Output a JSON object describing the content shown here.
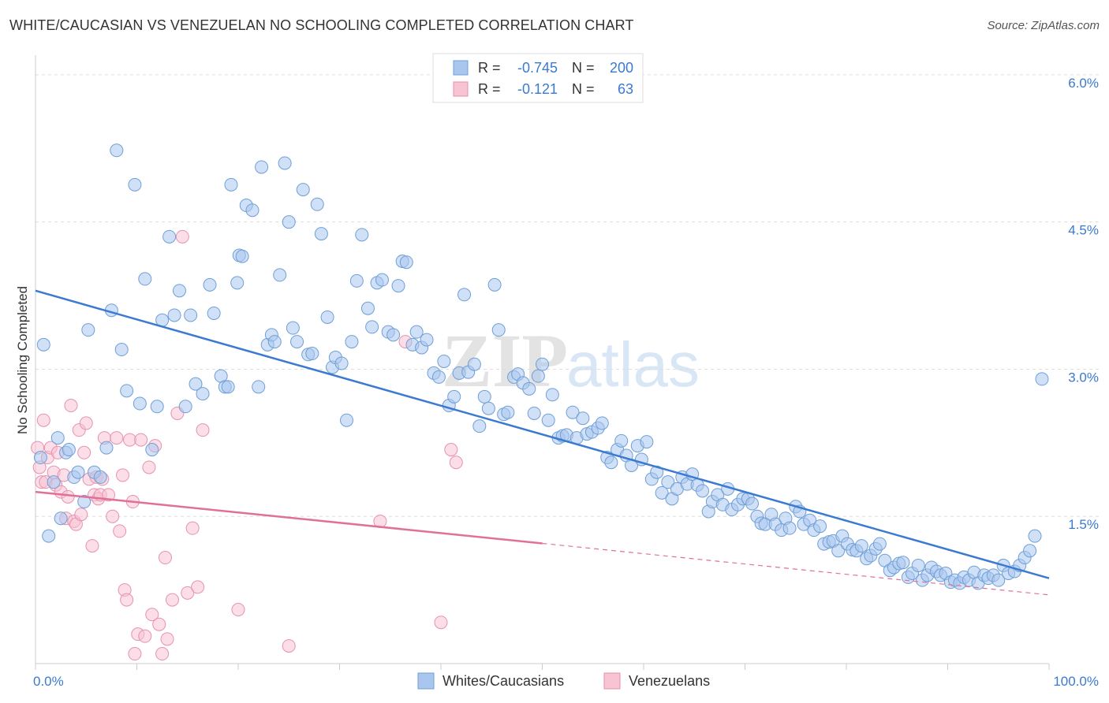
{
  "title": "WHITE/CAUCASIAN VS VENEZUELAN NO SCHOOLING COMPLETED CORRELATION CHART",
  "source": "Source: ZipAtlas.com",
  "watermark": {
    "zip": "ZIP",
    "atlas": "atlas"
  },
  "legend_box": {
    "rows": [
      {
        "r_label": "R =",
        "r_value": "-0.745",
        "n_label": "N =",
        "n_value": "200",
        "color": "#a9c7ee"
      },
      {
        "r_label": "R =",
        "r_value": "-0.121",
        "n_label": "N =",
        "n_value": "63",
        "color": "#f6b8cb"
      }
    ]
  },
  "colors": {
    "blue_fill": "#a9c7ee",
    "blue_stroke": "#6f9fd6",
    "blue_line": "#3a7ad0",
    "pink_fill": "#f8c3d3",
    "pink_stroke": "#e792ae",
    "pink_line": "#e0709a",
    "value_text": "#3a7ad0",
    "grid": "#dddddd"
  },
  "chart_data": {
    "type": "scatter",
    "title": "WHITE/CAUCASIAN VS VENEZUELAN NO SCHOOLING COMPLETED CORRELATION CHART",
    "xlabel": "",
    "ylabel": "No Schooling Completed",
    "xlim": [
      0,
      100
    ],
    "ylim": [
      0,
      6.2
    ],
    "x_tick_labels": [
      "0.0%",
      "100.0%"
    ],
    "y_ticks": [
      1.5,
      3.0,
      4.5,
      6.0
    ],
    "y_tick_labels": [
      "1.5%",
      "3.0%",
      "4.5%",
      "6.0%"
    ],
    "legend": [
      "Whites/Caucasians",
      "Venezuelans"
    ],
    "series": [
      {
        "name": "Whites/Caucasians",
        "R": -0.745,
        "N": 200,
        "trend": {
          "x": [
            0,
            100
          ],
          "y": [
            3.8,
            0.87
          ],
          "dashed_from": null
        },
        "points": [
          [
            0.5,
            2.1
          ],
          [
            0.8,
            3.25
          ],
          [
            1.3,
            1.3
          ],
          [
            1.8,
            1.85
          ],
          [
            2.2,
            2.3
          ],
          [
            2.5,
            1.48
          ],
          [
            3.0,
            2.15
          ],
          [
            3.3,
            2.18
          ],
          [
            3.8,
            1.9
          ],
          [
            4.2,
            1.95
          ],
          [
            4.8,
            1.65
          ],
          [
            5.2,
            3.4
          ],
          [
            5.8,
            1.95
          ],
          [
            6.4,
            1.9
          ],
          [
            7.0,
            2.2
          ],
          [
            7.5,
            3.6
          ],
          [
            8.0,
            5.23
          ],
          [
            8.5,
            3.2
          ],
          [
            9.0,
            2.78
          ],
          [
            9.8,
            4.88
          ],
          [
            10.3,
            2.65
          ],
          [
            10.8,
            3.92
          ],
          [
            11.5,
            2.18
          ],
          [
            12.0,
            2.62
          ],
          [
            12.5,
            3.5
          ],
          [
            13.2,
            4.35
          ],
          [
            13.7,
            3.55
          ],
          [
            14.2,
            3.8
          ],
          [
            14.8,
            2.62
          ],
          [
            15.3,
            3.55
          ],
          [
            15.8,
            2.85
          ],
          [
            16.5,
            2.75
          ],
          [
            17.2,
            3.86
          ],
          [
            17.6,
            3.57
          ],
          [
            18.3,
            2.93
          ],
          [
            18.7,
            2.82
          ],
          [
            19.0,
            2.82
          ],
          [
            19.3,
            4.88
          ],
          [
            19.9,
            3.88
          ],
          [
            20.1,
            4.16
          ],
          [
            20.4,
            4.15
          ],
          [
            20.8,
            4.67
          ],
          [
            21.4,
            4.62
          ],
          [
            22.0,
            2.82
          ],
          [
            22.3,
            5.06
          ],
          [
            22.9,
            3.25
          ],
          [
            23.3,
            3.35
          ],
          [
            23.6,
            3.28
          ],
          [
            24.1,
            3.96
          ],
          [
            24.6,
            5.1
          ],
          [
            25.0,
            4.5
          ],
          [
            25.4,
            3.42
          ],
          [
            25.8,
            3.28
          ],
          [
            26.4,
            4.83
          ],
          [
            26.9,
            3.15
          ],
          [
            27.3,
            3.16
          ],
          [
            27.8,
            4.68
          ],
          [
            28.2,
            4.38
          ],
          [
            28.8,
            3.53
          ],
          [
            29.3,
            3.02
          ],
          [
            29.6,
            3.12
          ],
          [
            30.2,
            3.06
          ],
          [
            30.7,
            2.48
          ],
          [
            31.2,
            3.28
          ],
          [
            31.7,
            3.9
          ],
          [
            32.2,
            4.37
          ],
          [
            32.8,
            3.62
          ],
          [
            33.2,
            3.43
          ],
          [
            33.7,
            3.88
          ],
          [
            34.2,
            3.91
          ],
          [
            34.8,
            3.38
          ],
          [
            35.3,
            3.35
          ],
          [
            35.8,
            3.85
          ],
          [
            36.2,
            4.1
          ],
          [
            36.6,
            4.09
          ],
          [
            37.2,
            3.25
          ],
          [
            37.6,
            3.38
          ],
          [
            38.1,
            3.22
          ],
          [
            38.6,
            3.3
          ],
          [
            39.3,
            2.96
          ],
          [
            39.8,
            2.92
          ],
          [
            40.3,
            3.08
          ],
          [
            40.8,
            2.63
          ],
          [
            41.3,
            2.72
          ],
          [
            41.8,
            2.96
          ],
          [
            42.3,
            3.76
          ],
          [
            42.7,
            2.97
          ],
          [
            43.3,
            3.05
          ],
          [
            43.8,
            2.42
          ],
          [
            44.3,
            2.72
          ],
          [
            44.7,
            2.6
          ],
          [
            45.3,
            3.86
          ],
          [
            45.7,
            3.4
          ],
          [
            46.2,
            2.54
          ],
          [
            46.6,
            2.56
          ],
          [
            47.2,
            2.92
          ],
          [
            47.6,
            2.95
          ],
          [
            48.1,
            2.86
          ],
          [
            48.7,
            2.8
          ],
          [
            49.2,
            2.55
          ],
          [
            49.6,
            2.93
          ],
          [
            50.0,
            3.05
          ],
          [
            50.6,
            2.48
          ],
          [
            51.0,
            2.74
          ],
          [
            51.6,
            2.3
          ],
          [
            52.0,
            2.32
          ],
          [
            52.4,
            2.33
          ],
          [
            53.0,
            2.56
          ],
          [
            53.4,
            2.3
          ],
          [
            54.0,
            2.5
          ],
          [
            54.4,
            2.34
          ],
          [
            54.9,
            2.36
          ],
          [
            55.5,
            2.4
          ],
          [
            55.9,
            2.45
          ],
          [
            56.4,
            2.1
          ],
          [
            56.8,
            2.05
          ],
          [
            57.4,
            2.18
          ],
          [
            57.8,
            2.27
          ],
          [
            58.3,
            2.12
          ],
          [
            58.8,
            2.02
          ],
          [
            59.4,
            2.22
          ],
          [
            59.8,
            2.08
          ],
          [
            60.3,
            2.26
          ],
          [
            60.8,
            1.88
          ],
          [
            61.3,
            1.95
          ],
          [
            61.8,
            1.74
          ],
          [
            62.4,
            1.85
          ],
          [
            62.8,
            1.68
          ],
          [
            63.3,
            1.78
          ],
          [
            63.8,
            1.9
          ],
          [
            64.3,
            1.83
          ],
          [
            64.8,
            1.93
          ],
          [
            65.3,
            1.82
          ],
          [
            65.8,
            1.76
          ],
          [
            66.4,
            1.55
          ],
          [
            66.8,
            1.65
          ],
          [
            67.3,
            1.72
          ],
          [
            67.8,
            1.62
          ],
          [
            68.3,
            1.78
          ],
          [
            68.7,
            1.57
          ],
          [
            69.3,
            1.62
          ],
          [
            69.8,
            1.68
          ],
          [
            70.3,
            1.68
          ],
          [
            70.7,
            1.63
          ],
          [
            71.2,
            1.5
          ],
          [
            71.6,
            1.43
          ],
          [
            72.0,
            1.42
          ],
          [
            72.6,
            1.52
          ],
          [
            73.0,
            1.42
          ],
          [
            73.6,
            1.36
          ],
          [
            74.0,
            1.48
          ],
          [
            74.4,
            1.38
          ],
          [
            75.0,
            1.6
          ],
          [
            75.4,
            1.55
          ],
          [
            75.8,
            1.42
          ],
          [
            76.4,
            1.46
          ],
          [
            76.8,
            1.36
          ],
          [
            77.4,
            1.4
          ],
          [
            77.8,
            1.22
          ],
          [
            78.3,
            1.24
          ],
          [
            78.7,
            1.25
          ],
          [
            79.2,
            1.15
          ],
          [
            79.6,
            1.3
          ],
          [
            80.1,
            1.22
          ],
          [
            80.6,
            1.16
          ],
          [
            81.0,
            1.15
          ],
          [
            81.5,
            1.2
          ],
          [
            82.0,
            1.07
          ],
          [
            82.4,
            1.1
          ],
          [
            82.9,
            1.17
          ],
          [
            83.3,
            1.22
          ],
          [
            83.8,
            1.05
          ],
          [
            84.3,
            0.95
          ],
          [
            84.7,
            0.98
          ],
          [
            85.2,
            1.02
          ],
          [
            85.6,
            1.03
          ],
          [
            86.1,
            0.88
          ],
          [
            86.5,
            0.92
          ],
          [
            87.1,
            1.0
          ],
          [
            87.5,
            0.85
          ],
          [
            88.0,
            0.9
          ],
          [
            88.4,
            0.98
          ],
          [
            88.9,
            0.94
          ],
          [
            89.3,
            0.9
          ],
          [
            89.8,
            0.92
          ],
          [
            90.3,
            0.83
          ],
          [
            90.7,
            0.85
          ],
          [
            91.2,
            0.82
          ],
          [
            91.6,
            0.88
          ],
          [
            92.1,
            0.85
          ],
          [
            92.6,
            0.93
          ],
          [
            93.0,
            0.82
          ],
          [
            93.6,
            0.9
          ],
          [
            94.0,
            0.87
          ],
          [
            94.5,
            0.9
          ],
          [
            95.0,
            0.85
          ],
          [
            95.5,
            1.0
          ],
          [
            96.0,
            0.92
          ],
          [
            96.6,
            0.94
          ],
          [
            97.1,
            1.0
          ],
          [
            97.6,
            1.08
          ],
          [
            98.1,
            1.15
          ],
          [
            98.6,
            1.3
          ],
          [
            99.3,
            2.9
          ]
        ]
      },
      {
        "name": "Venezuelans",
        "R": -0.121,
        "N": 63,
        "trend": {
          "x": [
            0,
            100
          ],
          "y": [
            1.75,
            0.7
          ],
          "solid_until": 50
        },
        "points": [
          [
            0.2,
            2.2
          ],
          [
            0.4,
            2.0
          ],
          [
            0.6,
            1.85
          ],
          [
            0.8,
            2.48
          ],
          [
            1.0,
            1.85
          ],
          [
            1.2,
            2.1
          ],
          [
            1.5,
            2.2
          ],
          [
            1.8,
            1.95
          ],
          [
            2.0,
            1.82
          ],
          [
            2.2,
            2.15
          ],
          [
            2.5,
            1.75
          ],
          [
            2.8,
            1.92
          ],
          [
            3.0,
            1.48
          ],
          [
            3.2,
            1.7
          ],
          [
            3.5,
            2.63
          ],
          [
            3.8,
            1.45
          ],
          [
            4.0,
            1.42
          ],
          [
            4.3,
            2.38
          ],
          [
            4.5,
            1.52
          ],
          [
            4.8,
            2.15
          ],
          [
            5.0,
            2.45
          ],
          [
            5.3,
            1.88
          ],
          [
            5.6,
            1.2
          ],
          [
            5.8,
            1.72
          ],
          [
            6.0,
            1.9
          ],
          [
            6.2,
            1.68
          ],
          [
            6.4,
            1.72
          ],
          [
            6.6,
            1.88
          ],
          [
            6.8,
            2.3
          ],
          [
            7.2,
            1.72
          ],
          [
            7.6,
            1.5
          ],
          [
            8.0,
            2.3
          ],
          [
            8.3,
            1.35
          ],
          [
            8.6,
            1.92
          ],
          [
            8.8,
            0.75
          ],
          [
            9.0,
            0.65
          ],
          [
            9.3,
            2.28
          ],
          [
            9.6,
            1.65
          ],
          [
            9.8,
            0.1
          ],
          [
            10.1,
            0.3
          ],
          [
            10.4,
            2.28
          ],
          [
            10.8,
            0.28
          ],
          [
            11.2,
            2.0
          ],
          [
            11.5,
            0.5
          ],
          [
            11.8,
            2.22
          ],
          [
            12.2,
            0.4
          ],
          [
            12.5,
            0.1
          ],
          [
            12.8,
            1.08
          ],
          [
            13.0,
            0.25
          ],
          [
            13.5,
            0.65
          ],
          [
            14.0,
            2.55
          ],
          [
            14.5,
            4.35
          ],
          [
            15.0,
            0.72
          ],
          [
            15.5,
            1.38
          ],
          [
            16.0,
            0.78
          ],
          [
            16.5,
            2.38
          ],
          [
            20.0,
            0.55
          ],
          [
            25.0,
            0.18
          ],
          [
            34.0,
            1.45
          ],
          [
            36.5,
            3.28
          ],
          [
            40.0,
            0.42
          ],
          [
            41.0,
            2.18
          ],
          [
            41.5,
            2.05
          ]
        ]
      }
    ]
  }
}
